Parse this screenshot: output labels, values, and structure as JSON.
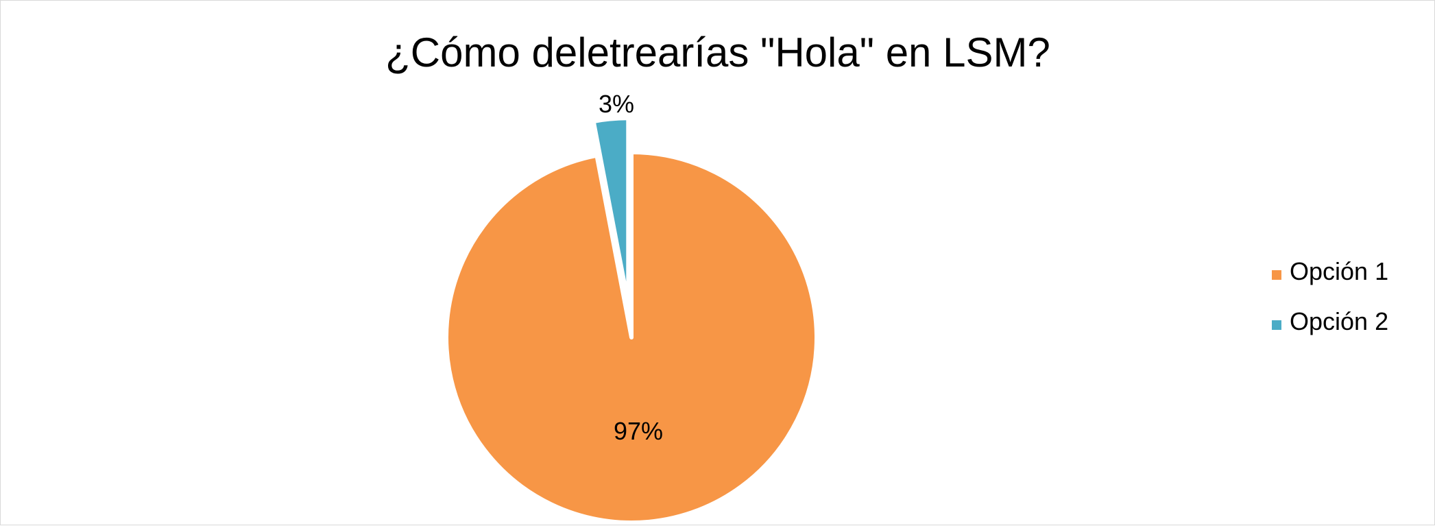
{
  "chart_data": {
    "type": "pie",
    "title": "¿Cómo deletrearías \"Hola\" en LSM?",
    "categories": [
      "Opción 1",
      "Opción 2"
    ],
    "values": [
      97,
      3
    ],
    "data_labels": [
      "97%",
      "3%"
    ],
    "colors": [
      "#F79646",
      "#4BACC6"
    ],
    "exploded": [
      false,
      true
    ],
    "legend_position": "right",
    "start_angle": "top, clockwise"
  }
}
